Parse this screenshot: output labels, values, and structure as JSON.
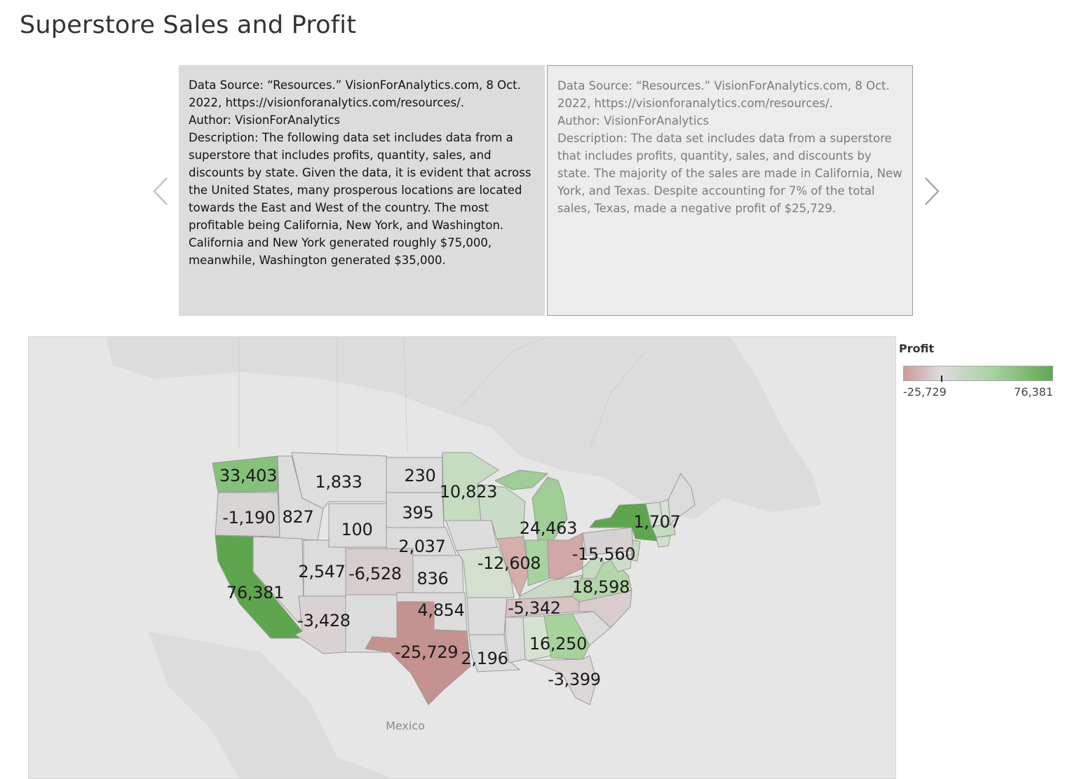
{
  "title": "Superstore Sales and Profit",
  "story": {
    "cards": [
      {
        "source": "Data Source: “Resources.” VisionForAnalytics.com, 8 Oct. 2022, https://visionforanalytics.com/resources/.",
        "author": "Author: VisionForAnalytics",
        "description": "Description: The following data set includes data from a superstore that includes profits, quantity, sales, and discounts by state. Given the data, it is evident that across the United States, many prosperous locations are located towards the East and West of the country. The most profitable being California, New York, and Washington. California and New York generated roughly $75,000, meanwhile, Washington generated $35,000."
      },
      {
        "source": "Data Source: “Resources.” VisionForAnalytics.com, 8 Oct. 2022, https://visionforanalytics.com/resources/.",
        "author": "Author: VisionForAnalytics",
        "description": "Description: The data set includes data from a superstore that includes profits, quantity, sales, and discounts by state. The majority of the sales are made in California, New York, and Texas. Despite accounting for 7% of the total sales, Texas, made a negative profit of $25,729."
      }
    ],
    "prev_icon": "chevron-left-icon",
    "next_icon": "chevron-right-icon"
  },
  "map": {
    "place_labels": [
      "Mexico"
    ],
    "profit_labels": [
      "33,403",
      "1,833",
      "230",
      "10,823",
      "-1,190",
      "827",
      "395",
      "100",
      "24,463",
      "1,707",
      "2,037",
      "-12,608",
      "-15,560",
      "2,547",
      "-6,528",
      "836",
      "76,381",
      "18,598",
      "4,854",
      "-5,342",
      "-3,428",
      "16,250",
      "-25,729",
      "2,196",
      "-3,399"
    ]
  },
  "legend": {
    "title": "Profit",
    "min": "-25,729",
    "max": "76,381",
    "colors": {
      "negative": "#cc9a98",
      "neutral": "#dcdcdc",
      "positive": "#5fa84f"
    }
  }
}
